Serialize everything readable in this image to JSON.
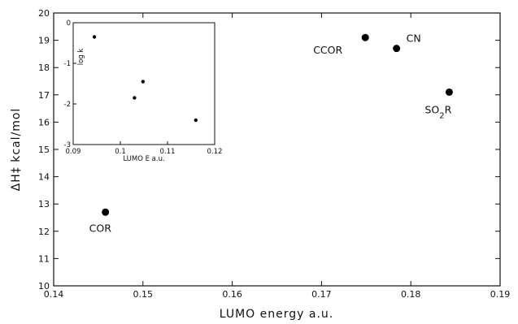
{
  "chart_data": {
    "type": "scatter",
    "xlabel": "LUMO energy a.u.",
    "ylabel": "ΔH‡ kcal/mol",
    "xlim": [
      0.14,
      0.19
    ],
    "ylim": [
      10,
      20
    ],
    "xticks": [
      "0.14",
      "0.15",
      "0.16",
      "0.17",
      "0.18",
      "0.19"
    ],
    "yticks": [
      "10",
      "11",
      "12",
      "13",
      "14",
      "15",
      "16",
      "17",
      "18",
      "19",
      "20"
    ],
    "grid": false,
    "points": [
      {
        "label": "COR",
        "x": 0.1458,
        "y": 12.7
      },
      {
        "label": "CCOR",
        "x": 0.1749,
        "y": 19.1
      },
      {
        "label": "CN",
        "x": 0.1784,
        "y": 18.7
      },
      {
        "label": "SO2R",
        "x": 0.1843,
        "y": 17.1
      }
    ],
    "inset": {
      "type": "scatter",
      "xlabel": "LUMO E a.u.",
      "ylabel": "log k",
      "xlim": [
        0.09,
        0.12
      ],
      "ylim": [
        -3,
        0
      ],
      "xticks": [
        "0.09",
        "0.1",
        "0.11",
        "0.12"
      ],
      "yticks": [
        "0",
        "-1",
        "-2",
        "-3"
      ],
      "points": [
        {
          "x": 0.0945,
          "y": -0.35
        },
        {
          "x": 0.103,
          "y": -1.85
        },
        {
          "x": 0.1048,
          "y": -1.45
        },
        {
          "x": 0.116,
          "y": -2.4
        }
      ]
    }
  }
}
